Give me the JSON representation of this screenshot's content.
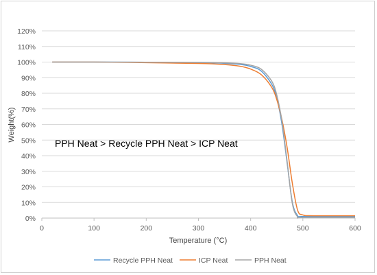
{
  "chart_data": {
    "type": "line",
    "title": "",
    "xlabel": "Temperature (°C)",
    "ylabel": "Weight(%)",
    "xlim": [
      0,
      600
    ],
    "ylim": [
      0,
      120
    ],
    "x_ticks": [
      "0",
      "100",
      "200",
      "300",
      "400",
      "500",
      "600"
    ],
    "y_ticks": [
      "0%",
      "10%",
      "20%",
      "30%",
      "40%",
      "50%",
      "60%",
      "70%",
      "80%",
      "90%",
      "100%",
      "110%",
      "120%"
    ],
    "grid": "horizontal",
    "legend_position": "bottom",
    "annotation": "PPH Neat > Recycle PPH Neat > ICP Neat",
    "series": [
      {
        "name": "Recycle PPH Neat",
        "color": "#5b9bd5",
        "x": [
          20,
          100,
          200,
          300,
          350,
          380,
          400,
          420,
          440,
          450,
          460,
          470,
          480,
          490,
          500,
          600
        ],
        "y": [
          100,
          100,
          99.9,
          99.6,
          99.2,
          98.5,
          97.2,
          94.3,
          86,
          77,
          60,
          35,
          10,
          1.5,
          1,
          1
        ]
      },
      {
        "name": "ICP Neat",
        "color": "#ed7d31",
        "x": [
          20,
          100,
          200,
          300,
          350,
          380,
          400,
          420,
          440,
          450,
          460,
          470,
          480,
          490,
          500,
          520,
          600
        ],
        "y": [
          100,
          100,
          99.6,
          99.1,
          98.4,
          97.3,
          95.5,
          92,
          84,
          76,
          63,
          45,
          22,
          5,
          2,
          1.5,
          1.5
        ]
      },
      {
        "name": "PPH Neat",
        "color": "#a5a5a5",
        "x": [
          20,
          100,
          200,
          300,
          350,
          380,
          400,
          420,
          440,
          450,
          460,
          470,
          480,
          490,
          500,
          600
        ],
        "y": [
          100,
          100,
          99.9,
          99.8,
          99.5,
          99,
          98,
          95.5,
          88,
          79,
          62,
          36,
          9,
          0.8,
          0.3,
          0.3
        ]
      }
    ]
  }
}
